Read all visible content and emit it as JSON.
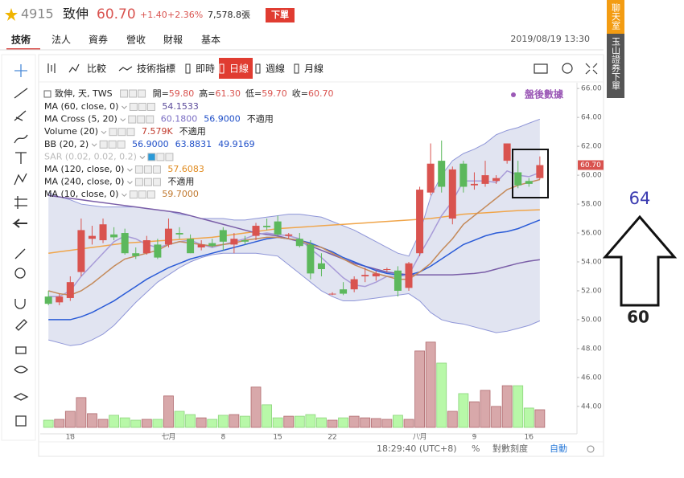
{
  "header": {
    "code": "4915",
    "name": "致伸",
    "price": "60.70",
    "change": "+1.40",
    "change_pct": "+2.36%",
    "volume": "7,578.8張",
    "order_button": "下單"
  },
  "tabs": [
    "技術",
    "法人",
    "資券",
    "營收",
    "財報",
    "基本"
  ],
  "datetime": "2019/08/19 13:30",
  "toolbar": [
    "比較",
    "技術指標",
    "即時",
    "日線",
    "週線",
    "月線"
  ],
  "legend": {
    "title": "致伸, 天, TWS",
    "ohlc": [
      {
        "label": "開=",
        "value": "59.80"
      },
      {
        "label": "高=",
        "value": "61.30"
      },
      {
        "label": "低=",
        "value": "59.70"
      },
      {
        "label": "收=",
        "value": "60.70"
      }
    ],
    "badge": "盤後數據",
    "indicators": [
      {
        "name": "MA (60, close, 0)",
        "values": [
          {
            "text": "54.1533",
            "color": "#5b4a9a"
          }
        ]
      },
      {
        "name": "MA Cross (5, 20)",
        "values": [
          {
            "text": "60.1800",
            "color": "#7c6fc4"
          },
          {
            "text": "56.9000",
            "color": "#1f4fc8"
          },
          {
            "text": "不適用",
            "color": "#222222"
          }
        ]
      },
      {
        "name": "Volume (20)",
        "values": [
          {
            "text": "7.579K",
            "color": "#c0392b"
          },
          {
            "text": "不適用",
            "color": "#222222"
          }
        ]
      },
      {
        "name": "BB (20, 2)",
        "values": [
          {
            "text": "56.9000",
            "color": "#1f4fc8"
          },
          {
            "text": "63.8831",
            "color": "#1f4fc8"
          },
          {
            "text": "49.9169",
            "color": "#1f4fc8"
          }
        ]
      },
      {
        "name": "SAR (0.02, 0.02, 0.2)",
        "values": [],
        "muted": true
      },
      {
        "name": "MA (120, close, 0)",
        "values": [
          {
            "text": "57.6083",
            "color": "#e08a1e"
          }
        ]
      },
      {
        "name": "MA (240, close, 0)",
        "values": [
          {
            "text": "不適用",
            "color": "#222222"
          }
        ]
      },
      {
        "name": "MA (10, close, 0)",
        "values": [
          {
            "text": "59.7000",
            "color": "#c0782e"
          }
        ]
      }
    ]
  },
  "chart": {
    "type": "candlestick",
    "up_color": "#d9534f",
    "down_color": "#5cb85c",
    "vol_up_color": "#d8a8aa",
    "vol_down_color": "#b8f8a8",
    "xlim": [
      -0.75,
      48.4
    ],
    "ylim": [
      42.1,
      66.4
    ],
    "vlim": [
      0,
      40000
    ],
    "yticks": [
      {
        "value": 44,
        "label": "44.00"
      },
      {
        "value": 46,
        "label": "46.00"
      },
      {
        "value": 48,
        "label": "48.00"
      },
      {
        "value": 50,
        "label": "50.00"
      },
      {
        "value": 52,
        "label": "52.00"
      },
      {
        "value": 54,
        "label": "54.00"
      },
      {
        "value": 56,
        "label": "56.00"
      },
      {
        "value": 58,
        "label": "58.00"
      },
      {
        "value": 60,
        "label": "60.00"
      },
      {
        "value": 62,
        "label": "62.00"
      },
      {
        "value": 64,
        "label": "64.00"
      },
      {
        "value": 66,
        "label": "66.00"
      }
    ],
    "xticks": [
      {
        "value": 2,
        "label": "18"
      },
      {
        "value": 11,
        "label": "七月"
      },
      {
        "value": 16,
        "label": "8"
      },
      {
        "value": 21,
        "label": "15"
      },
      {
        "value": 26,
        "label": "22"
      },
      {
        "value": 34,
        "label": "八月"
      },
      {
        "value": 39,
        "label": "9"
      },
      {
        "value": 44,
        "label": "16"
      }
    ],
    "open": [
      51.6,
      51.2,
      51.5,
      53.3,
      55.6,
      55.5,
      55.9,
      56.0,
      54.6,
      54.6,
      55.2,
      55.2,
      56.0,
      55.6,
      55.0,
      55.3,
      56.2,
      55.2,
      55.5,
      55.8,
      56.5,
      56.8,
      55.8,
      55.6,
      55.2,
      53.9,
      51.8,
      52.1,
      52.1,
      53.0,
      53.0,
      53.5,
      53.4,
      52.2,
      54.6,
      58.8,
      61.0,
      57.0,
      60.8,
      59.3,
      59.4,
      59.6,
      61.0,
      60.2,
      59.6,
      59.8
    ],
    "high": [
      52.0,
      51.8,
      53.0,
      57.0,
      56.5,
      57.0,
      56.4,
      56.3,
      55.0,
      55.8,
      55.6,
      57.0,
      56.4,
      55.9,
      55.5,
      55.6,
      56.4,
      56.0,
      55.8,
      56.7,
      57.0,
      57.2,
      56.0,
      56.0,
      55.5,
      54.6,
      51.9,
      52.6,
      53.0,
      53.6,
      53.4,
      53.6,
      53.7,
      54.0,
      59.2,
      62.2,
      62.4,
      60.6,
      61.0,
      60.2,
      61.0,
      60.0,
      62.2,
      61.0,
      59.8,
      61.3
    ],
    "low": [
      51.0,
      51.0,
      51.3,
      53.0,
      55.2,
      55.3,
      55.5,
      54.5,
      54.2,
      54.5,
      54.2,
      55.0,
      55.6,
      54.6,
      54.8,
      55.0,
      54.8,
      54.6,
      55.2,
      55.5,
      56.2,
      55.8,
      55.6,
      55.0,
      52.8,
      53.0,
      51.7,
      51.7,
      51.9,
      52.6,
      52.7,
      53.3,
      51.6,
      52.0,
      54.4,
      58.6,
      58.8,
      56.6,
      58.8,
      59.0,
      59.2,
      59.4,
      60.8,
      59.1,
      59.2,
      59.7
    ],
    "close": [
      51.1,
      51.6,
      52.6,
      56.2,
      55.8,
      56.6,
      55.7,
      54.6,
      54.4,
      55.5,
      54.3,
      56.3,
      55.9,
      54.6,
      55.2,
      55.1,
      55.4,
      55.6,
      55.4,
      56.5,
      56.4,
      55.9,
      55.9,
      55.1,
      53.2,
      53.5,
      51.8,
      51.8,
      52.8,
      53.1,
      53.2,
      53.5,
      52.0,
      53.9,
      59.0,
      60.8,
      59.2,
      60.4,
      59.2,
      59.4,
      60.0,
      59.8,
      62.2,
      59.3,
      59.4,
      60.7
    ],
    "volume": [
      3100,
      3450,
      6900,
      12800,
      5900,
      3450,
      5200,
      4100,
      3100,
      3450,
      3450,
      13500,
      6900,
      5500,
      4100,
      3450,
      5200,
      5500,
      4800,
      17300,
      9700,
      4100,
      4800,
      4800,
      5500,
      4100,
      3100,
      4100,
      4800,
      4100,
      3800,
      3450,
      5200,
      3450,
      32800,
      36600,
      27600,
      6900,
      14500,
      11000,
      15900,
      9000,
      17900,
      17900,
      8300,
      7579
    ],
    "band": {
      "fill": "#c9cde6",
      "stroke": "#8f96d8",
      "upper": [
        58.8,
        58.5,
        58.3,
        58.0,
        57.9,
        57.8,
        57.8,
        57.8,
        57.8,
        57.7,
        57.6,
        57.5,
        57.3,
        57.2,
        57.0,
        57.0,
        57.0,
        56.9,
        56.9,
        57.0,
        57.1,
        57.2,
        57.3,
        57.3,
        57.2,
        57.1,
        56.8,
        56.5,
        56.2,
        55.8,
        55.4,
        55.0,
        54.6,
        54.4,
        56.0,
        58.5,
        60.0,
        61.0,
        61.5,
        61.8,
        62.2,
        62.8,
        63.1,
        63.3,
        63.6,
        63.88
      ],
      "lower": [
        48.6,
        48.4,
        48.2,
        48.3,
        48.6,
        49.0,
        49.6,
        50.4,
        51.2,
        51.9,
        52.6,
        53.1,
        53.6,
        54.0,
        54.3,
        54.5,
        54.6,
        54.6,
        54.6,
        54.6,
        54.5,
        54.4,
        53.8,
        53.2,
        52.6,
        52.0,
        51.6,
        51.3,
        51.3,
        51.4,
        51.5,
        51.6,
        51.7,
        51.8,
        51.3,
        50.5,
        50.0,
        49.8,
        49.7,
        49.5,
        49.3,
        49.1,
        49.2,
        49.4,
        49.6,
        49.92
      ]
    },
    "lines": [
      {
        "color": "#f0a54a",
        "values": [
          54.6,
          54.7,
          54.8,
          54.9,
          55.0,
          55.1,
          55.2,
          55.3,
          55.35,
          55.4,
          55.45,
          55.5,
          55.55,
          55.6,
          55.65,
          55.7,
          55.8,
          55.9,
          56.0,
          56.1,
          56.2,
          56.3,
          56.35,
          56.4,
          56.45,
          56.5,
          56.55,
          56.6,
          56.65,
          56.7,
          56.75,
          56.8,
          56.85,
          56.9,
          56.95,
          57.0,
          57.1,
          57.2,
          57.3,
          57.35,
          57.4,
          57.45,
          57.5,
          57.55,
          57.58,
          57.61
        ]
      },
      {
        "color": "#7a5ea8",
        "values": [
          58.6,
          58.5,
          58.4,
          58.3,
          58.2,
          58.1,
          58.0,
          57.9,
          57.8,
          57.7,
          57.6,
          57.5,
          57.4,
          57.2,
          57.0,
          56.8,
          56.6,
          56.4,
          56.2,
          56.0,
          55.9,
          55.8,
          55.6,
          55.4,
          55.1,
          54.8,
          54.5,
          54.2,
          53.9,
          53.7,
          53.5,
          53.3,
          53.2,
          53.1,
          53.1,
          53.1,
          53.1,
          53.1,
          53.15,
          53.2,
          53.3,
          53.5,
          53.7,
          53.9,
          54.05,
          54.15
        ]
      },
      {
        "color": "#2a5bd7",
        "values": [
          50.0,
          50.0,
          50.0,
          50.2,
          50.5,
          50.9,
          51.3,
          51.8,
          52.3,
          52.8,
          53.2,
          53.6,
          53.9,
          54.2,
          54.4,
          54.6,
          54.8,
          55.0,
          55.2,
          55.4,
          55.6,
          55.7,
          55.6,
          55.5,
          55.3,
          55.0,
          54.7,
          54.3,
          54.0,
          53.7,
          53.4,
          53.2,
          53.1,
          53.1,
          53.3,
          53.7,
          54.2,
          54.7,
          55.2,
          55.5,
          55.8,
          56.0,
          56.1,
          56.3,
          56.6,
          56.9
        ]
      },
      {
        "color": "#a89bd8",
        "values": [
          51.6,
          51.6,
          52.0,
          53.0,
          53.8,
          54.6,
          55.4,
          55.8,
          55.6,
          55.2,
          55.0,
          55.2,
          55.4,
          55.5,
          55.2,
          55.0,
          55.2,
          55.4,
          55.6,
          55.9,
          56.0,
          55.9,
          55.8,
          55.6,
          54.9,
          54.3,
          53.6,
          52.9,
          52.4,
          52.3,
          52.6,
          53.0,
          53.0,
          53.1,
          54.5,
          55.8,
          57.2,
          58.2,
          59.6,
          59.6,
          59.6,
          59.5,
          60.3,
          60.0,
          59.9,
          60.18
        ]
      },
      {
        "color": "#c48a5a",
        "values": [
          52.0,
          51.8,
          51.7,
          52.0,
          52.5,
          53.1,
          53.7,
          54.2,
          54.4,
          54.6,
          54.8,
          55.2,
          55.4,
          55.3,
          55.2,
          55.1,
          55.2,
          55.3,
          55.5,
          55.6,
          55.7,
          55.7,
          55.6,
          55.5,
          55.2,
          55.0,
          54.6,
          54.2,
          53.8,
          53.5,
          53.2,
          53.0,
          52.8,
          52.8,
          53.3,
          53.9,
          54.8,
          55.6,
          56.6,
          57.2,
          57.8,
          58.4,
          59.0,
          59.3,
          59.5,
          59.7
        ]
      }
    ]
  },
  "annotations": {
    "target": "64",
    "current": "60"
  },
  "status": {
    "time": "18:29:40 (UTC+8)",
    "pct": "%",
    "log": "對數刻度",
    "auto": "自動"
  },
  "side_tabs": [
    "聊天室",
    "玉山證券下單"
  ]
}
